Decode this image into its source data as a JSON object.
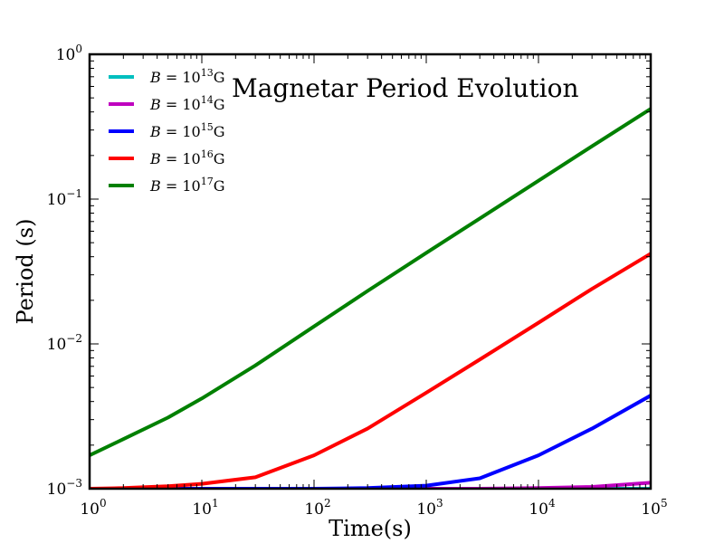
{
  "chart_data": {
    "type": "line",
    "title": "Magnetar Period Evolution",
    "xlabel": "Time(s)",
    "ylabel": "Period (s)",
    "xscale": "log",
    "yscale": "log",
    "xlim": [
      1,
      100000
    ],
    "ylim": [
      0.001,
      1
    ],
    "grid": false,
    "legend_position": "top-left",
    "x_ticks": [
      {
        "value": 1,
        "base": "10",
        "exp": "0"
      },
      {
        "value": 10,
        "base": "10",
        "exp": "1"
      },
      {
        "value": 100,
        "base": "10",
        "exp": "2"
      },
      {
        "value": 1000,
        "base": "10",
        "exp": "3"
      },
      {
        "value": 10000,
        "base": "10",
        "exp": "4"
      },
      {
        "value": 100000,
        "base": "10",
        "exp": "5"
      }
    ],
    "y_ticks": [
      {
        "value": 0.001,
        "base": "10",
        "exp": "−3"
      },
      {
        "value": 0.01,
        "base": "10",
        "exp": "−2"
      },
      {
        "value": 0.1,
        "base": "10",
        "exp": "−1"
      },
      {
        "value": 1,
        "base": "10",
        "exp": "0"
      }
    ],
    "x": [
      1,
      2,
      5,
      10,
      30,
      100,
      300,
      1000,
      3000,
      10000,
      30000,
      100000
    ],
    "series": [
      {
        "name": "B = 10^13 G",
        "legend_base": "10",
        "legend_exp": "13",
        "color": "#00bfbf",
        "values": [
          0.001,
          0.001,
          0.001,
          0.001,
          0.001,
          0.001,
          0.001,
          0.001,
          0.001,
          0.001,
          0.001,
          0.001
        ]
      },
      {
        "name": "B = 10^14 G",
        "legend_base": "10",
        "legend_exp": "14",
        "color": "#bf00bf",
        "values": [
          0.001,
          0.001,
          0.001,
          0.001,
          0.001,
          0.001,
          0.001,
          0.001,
          0.001,
          0.00101,
          0.00103,
          0.0011
        ]
      },
      {
        "name": "B = 10^15 G",
        "legend_base": "10",
        "legend_exp": "15",
        "color": "#0000ff",
        "values": [
          0.001,
          0.001,
          0.001,
          0.001,
          0.001,
          0.001,
          0.00101,
          0.00105,
          0.00118,
          0.0017,
          0.0026,
          0.0044
        ]
      },
      {
        "name": "B = 10^16 G",
        "legend_base": "10",
        "legend_exp": "16",
        "color": "#ff0000",
        "values": [
          0.001,
          0.00101,
          0.00104,
          0.00108,
          0.0012,
          0.0017,
          0.0026,
          0.0046,
          0.0078,
          0.014,
          0.024,
          0.042
        ]
      },
      {
        "name": "B = 10^17 G",
        "legend_base": "10",
        "legend_exp": "17",
        "color": "#008000",
        "values": [
          0.0017,
          0.0022,
          0.0031,
          0.0042,
          0.0071,
          0.0132,
          0.0232,
          0.0425,
          0.0735,
          0.134,
          0.232,
          0.42
        ]
      }
    ]
  }
}
